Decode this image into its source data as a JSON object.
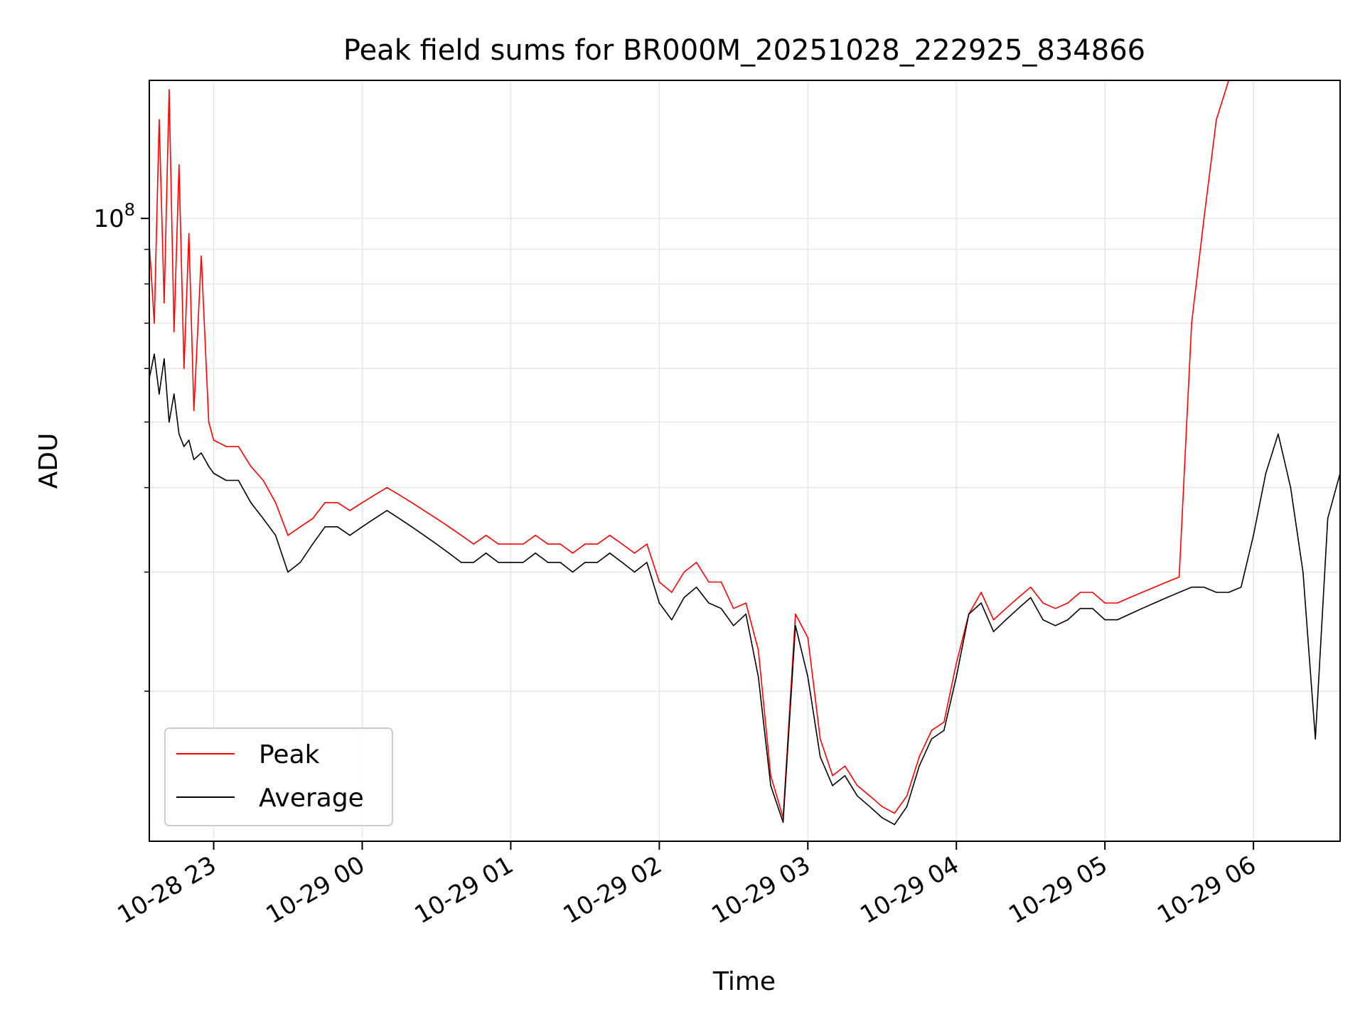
{
  "chart_data": {
    "type": "line",
    "title": "Peak field sums for BR000M_20251028_222925_834866",
    "xlabel": "Time",
    "ylabel": "ADU",
    "yscale": "log",
    "ylim": [
      12000000,
      160000000
    ],
    "xlim": [
      "10-28 22:34",
      "10-29 06:35"
    ],
    "x_tick_labels": [
      "10-28 23",
      "10-29 00",
      "10-29 01",
      "10-29 02",
      "10-29 03",
      "10-29 04",
      "10-29 05",
      "10-29 06"
    ],
    "y_tick_labels": [
      {
        "value": 100000000,
        "base": "10",
        "exp": "8"
      }
    ],
    "grid": true,
    "legend": {
      "placement": "lower-left",
      "entries": [
        "Peak",
        "Average"
      ]
    },
    "colors": {
      "Peak": "#ff0000",
      "Average": "#000000"
    },
    "x": [
      "10-28 22:34",
      "10-28 22:36",
      "10-28 22:38",
      "10-28 22:40",
      "10-28 22:42",
      "10-28 22:44",
      "10-28 22:46",
      "10-28 22:48",
      "10-28 22:50",
      "10-28 22:52",
      "10-28 22:55",
      "10-28 22:58",
      "10-28 23:00",
      "10-28 23:05",
      "10-28 23:10",
      "10-28 23:15",
      "10-28 23:20",
      "10-28 23:25",
      "10-28 23:30",
      "10-28 23:35",
      "10-28 23:40",
      "10-28 23:45",
      "10-28 23:50",
      "10-28 23:55",
      "10-29 00:00",
      "10-29 00:05",
      "10-29 00:10",
      "10-29 00:15",
      "10-29 00:20",
      "10-29 00:25",
      "10-29 00:30",
      "10-29 00:35",
      "10-29 00:40",
      "10-29 00:45",
      "10-29 00:50",
      "10-29 00:55",
      "10-29 01:00",
      "10-29 01:05",
      "10-29 01:10",
      "10-29 01:15",
      "10-29 01:20",
      "10-29 01:25",
      "10-29 01:30",
      "10-29 01:35",
      "10-29 01:40",
      "10-29 01:45",
      "10-29 01:50",
      "10-29 01:55",
      "10-29 02:00",
      "10-29 02:05",
      "10-29 02:10",
      "10-29 02:15",
      "10-29 02:20",
      "10-29 02:25",
      "10-29 02:30",
      "10-29 02:35",
      "10-29 02:40",
      "10-29 02:45",
      "10-29 02:50",
      "10-29 02:55",
      "10-29 03:00",
      "10-29 03:05",
      "10-29 03:10",
      "10-29 03:15",
      "10-29 03:20",
      "10-29 03:25",
      "10-29 03:30",
      "10-29 03:35",
      "10-29 03:40",
      "10-29 03:45",
      "10-29 03:50",
      "10-29 03:55",
      "10-29 04:00",
      "10-29 04:05",
      "10-29 04:10",
      "10-29 04:15",
      "10-29 04:20",
      "10-29 04:25",
      "10-29 04:30",
      "10-29 04:35",
      "10-29 04:40",
      "10-29 04:45",
      "10-29 04:50",
      "10-29 04:55",
      "10-29 05:00",
      "10-29 05:05",
      "10-29 05:10",
      "10-29 05:15",
      "10-29 05:20",
      "10-29 05:25",
      "10-29 05:30",
      "10-29 05:35",
      "10-29 05:40",
      "10-29 05:45",
      "10-29 05:50",
      "10-29 05:55",
      "10-29 06:00",
      "10-29 06:05",
      "10-29 06:10",
      "10-29 06:15",
      "10-29 06:20",
      "10-29 06:25",
      "10-29 06:30",
      "10-29 06:35"
    ],
    "series": [
      {
        "name": "Peak",
        "values": [
          92000000,
          70000000,
          140000000,
          75000000,
          155000000,
          68000000,
          120000000,
          60000000,
          95000000,
          52000000,
          88000000,
          50000000,
          47000000,
          46000000,
          46000000,
          43000000,
          41000000,
          38000000,
          34000000,
          35000000,
          36000000,
          38000000,
          38000000,
          37000000,
          38000000,
          39000000,
          40000000,
          39000000,
          38000000,
          37000000,
          36000000,
          35000000,
          34000000,
          33000000,
          34000000,
          33000000,
          33000000,
          33000000,
          34000000,
          33000000,
          33000000,
          32000000,
          33000000,
          33000000,
          34000000,
          33000000,
          32000000,
          33000000,
          29000000,
          28000000,
          30000000,
          31000000,
          29000000,
          29000000,
          26500000,
          27000000,
          23000000,
          15000000,
          13000000,
          26000000,
          24000000,
          17000000,
          15000000,
          15500000,
          14500000,
          14000000,
          13500000,
          13200000,
          14000000,
          16000000,
          17500000,
          18000000,
          22000000,
          26000000,
          28000000,
          25500000,
          26500000,
          27500000,
          28500000,
          27000000,
          26500000,
          27000000,
          28000000,
          28000000,
          27000000,
          27000000,
          27500000,
          28000000,
          28500000,
          29000000,
          29500000,
          70000000,
          100000000,
          140000000,
          160000000,
          160000000,
          160000000,
          160000000,
          160000000,
          160000000,
          160000000,
          160000000,
          160000000,
          160000000
        ]
      },
      {
        "name": "Average",
        "values": [
          58000000,
          63000000,
          55000000,
          62000000,
          50000000,
          55000000,
          48000000,
          46000000,
          47000000,
          44000000,
          45000000,
          43000000,
          42000000,
          41000000,
          41000000,
          38000000,
          36000000,
          34000000,
          30000000,
          31000000,
          33000000,
          35000000,
          35000000,
          34000000,
          35000000,
          36000000,
          37000000,
          36000000,
          35000000,
          34000000,
          33000000,
          32000000,
          31000000,
          31000000,
          32000000,
          31000000,
          31000000,
          31000000,
          32000000,
          31000000,
          31000000,
          30000000,
          31000000,
          31000000,
          32000000,
          31000000,
          30000000,
          31000000,
          27000000,
          25500000,
          27500000,
          28500000,
          27000000,
          26500000,
          25000000,
          26000000,
          21000000,
          14500000,
          12800000,
          25000000,
          21000000,
          16000000,
          14500000,
          15000000,
          14000000,
          13500000,
          13000000,
          12700000,
          13500000,
          15500000,
          17000000,
          17500000,
          21000000,
          26000000,
          27000000,
          24500000,
          25500000,
          26500000,
          27500000,
          25500000,
          25000000,
          25500000,
          26500000,
          26500000,
          25500000,
          25500000,
          26000000,
          26500000,
          27000000,
          27500000,
          28000000,
          28500000,
          28500000,
          28000000,
          28000000,
          28500000,
          34000000,
          42000000,
          48000000,
          40000000,
          30000000,
          17000000,
          36000000,
          42000000
        ]
      }
    ]
  }
}
